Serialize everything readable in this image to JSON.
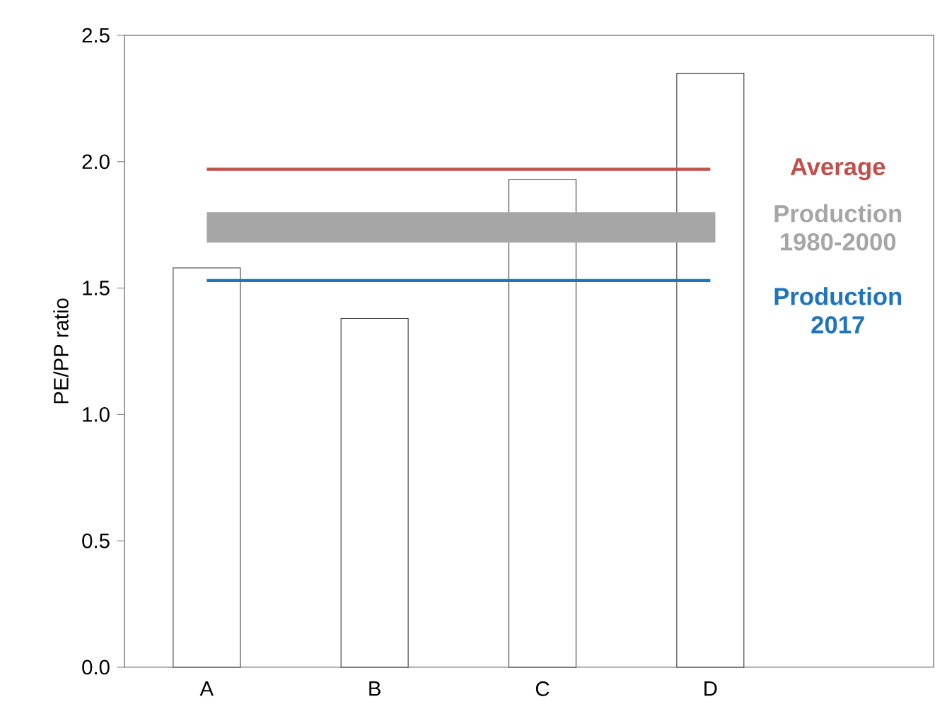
{
  "chart_data": {
    "type": "bar",
    "ylabel": "PE/PP ratio",
    "categories": [
      "A",
      "B",
      "C",
      "D"
    ],
    "values": [
      1.58,
      1.38,
      1.93,
      2.35
    ],
    "color": "#ffffff",
    "ylim": [
      0,
      2.5
    ],
    "yticks": [
      {
        "value": 0,
        "label": "0.0"
      },
      0.5,
      {
        "value": 1,
        "label": "1.0"
      },
      1.5,
      {
        "value": 2,
        "label": "2.0"
      },
      2.5
    ],
    "ref_lines": [
      {
        "axis": "y",
        "value": 1.97,
        "label": "Average",
        "color": "#c0504d"
      },
      {
        "axis": "y",
        "value": 1.53,
        "label": "Production 2017",
        "color": "#1f74c0"
      }
    ],
    "bands": [
      {
        "axis": "y",
        "from": 1.68,
        "to": 1.8,
        "label": "Production 1980-2000",
        "color": "#a6a6a6"
      }
    ],
    "grid": false
  }
}
